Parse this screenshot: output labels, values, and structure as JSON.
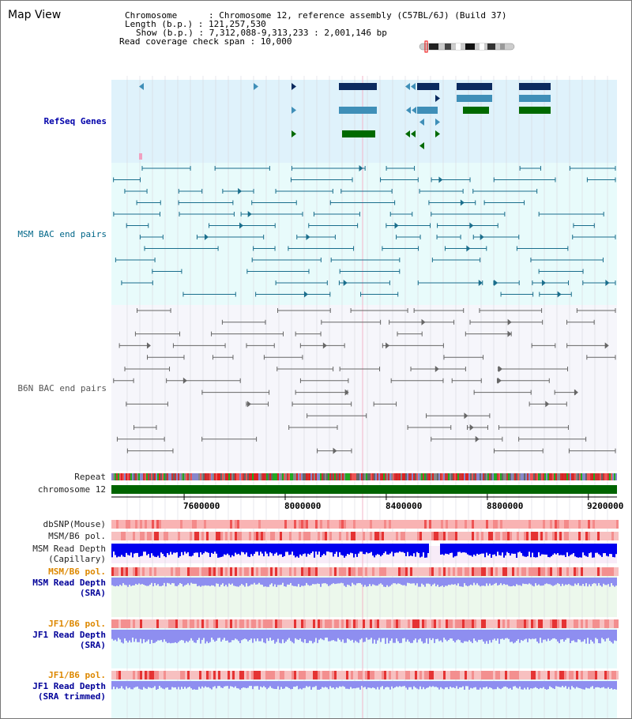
{
  "title": "Map View",
  "info": {
    "chromosome": "Chromosome      : Chromosome 12, reference assembly (C57BL/6J) (Build 37)",
    "length": "Length (b.p.) : 121,257,530",
    "show": "Show (b.p.) : 7,312,088-9,313,233 : 2,001,146 bp",
    "span": "Read coverage check span : 10,000"
  },
  "tracks": {
    "refseq": "RefSeq Genes",
    "msm_bac": "MSM BAC end pairs",
    "b6n_bac": "B6N BAC end pairs",
    "repeat": "Repeat",
    "chromosome": "chromosome 12",
    "dbsnp": "dbSNP(Mouse)",
    "msm_b6_pol": "MSM/B6 pol.",
    "msm_depth_cap_1": "MSM Read Depth",
    "msm_depth_cap_2": "(Capillary)",
    "msm_b6_pol_sra": "MSM/B6 pol.",
    "msm_depth_sra_1": "MSM Read Depth",
    "msm_depth_sra_2": "(SRA)",
    "jf1_b6_pol": "JF1/B6 pol.",
    "jf1_depth_1": "JF1 Read Depth",
    "jf1_depth_2": "(SRA)",
    "jf1_b6_pol_2": "JF1/B6 pol.",
    "jf1_trim_1": "JF1 Read Depth",
    "jf1_trim_2": "(SRA trimmed)"
  },
  "axis": {
    "ticks": [
      "7600000",
      "8000000",
      "8400000",
      "8800000",
      "9200000"
    ],
    "tick_values": [
      7600000,
      8000000,
      8400000,
      8800000,
      9200000
    ],
    "start": 7312088,
    "end": 9313233
  },
  "colors": {
    "refseq_bg": "#dff2fb",
    "msm_bg": "#e8fbfb",
    "b6n_bg": "#f6f6fb",
    "navy": "#0b2a5f",
    "steel": "#3f8fb8",
    "green": "#006a00",
    "msm_line": "#1a6e8c",
    "b6n_line": "#666666",
    "chrom_green": "#006400",
    "blue_depth": "#0000ee",
    "light_depth": "#8e8ef0"
  }
}
